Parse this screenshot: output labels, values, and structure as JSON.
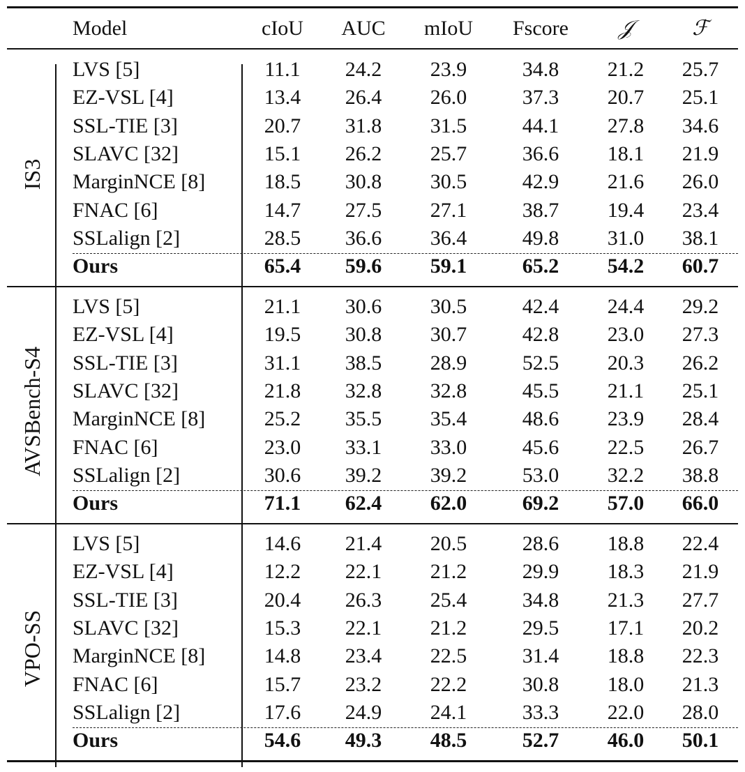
{
  "table": {
    "columns": [
      "Model",
      "cIoU",
      "AUC",
      "mIoU",
      "Fscore",
      "𝒥",
      "ℱ"
    ],
    "groups": [
      {
        "name": "IS3",
        "rows": [
          {
            "model": "LVS [5]",
            "values": [
              "11.1",
              "24.2",
              "23.9",
              "34.8",
              "21.2",
              "25.7"
            ]
          },
          {
            "model": "EZ-VSL [4]",
            "values": [
              "13.4",
              "26.4",
              "26.0",
              "37.3",
              "20.7",
              "25.1"
            ]
          },
          {
            "model": "SSL-TIE [3]",
            "values": [
              "20.7",
              "31.8",
              "31.5",
              "44.1",
              "27.8",
              "34.6"
            ]
          },
          {
            "model": "SLAVC [32]",
            "values": [
              "15.1",
              "26.2",
              "25.7",
              "36.6",
              "18.1",
              "21.9"
            ]
          },
          {
            "model": "MarginNCE [8]",
            "values": [
              "18.5",
              "30.8",
              "30.5",
              "42.9",
              "21.6",
              "26.0"
            ]
          },
          {
            "model": "FNAC [6]",
            "values": [
              "14.7",
              "27.5",
              "27.1",
              "38.7",
              "19.4",
              "23.4"
            ]
          },
          {
            "model": "SSLalign [2]",
            "values": [
              "28.5",
              "36.6",
              "36.4",
              "49.8",
              "31.0",
              "38.1"
            ]
          }
        ],
        "ours": {
          "model": "Ours",
          "values": [
            "65.4",
            "59.6",
            "59.1",
            "65.2",
            "54.2",
            "60.7"
          ]
        }
      },
      {
        "name": "AVSBench-S4",
        "rows": [
          {
            "model": "LVS [5]",
            "values": [
              "21.1",
              "30.6",
              "30.5",
              "42.4",
              "24.4",
              "29.2"
            ]
          },
          {
            "model": "EZ-VSL [4]",
            "values": [
              "19.5",
              "30.8",
              "30.7",
              "42.8",
              "23.0",
              "27.3"
            ]
          },
          {
            "model": "SSL-TIE [3]",
            "values": [
              "31.1",
              "38.5",
              "28.9",
              "52.5",
              "20.3",
              "26.2"
            ]
          },
          {
            "model": "SLAVC [32]",
            "values": [
              "21.8",
              "32.8",
              "32.8",
              "45.5",
              "21.1",
              "25.1"
            ]
          },
          {
            "model": "MarginNCE [8]",
            "values": [
              "25.2",
              "35.5",
              "35.4",
              "48.6",
              "23.9",
              "28.4"
            ]
          },
          {
            "model": "FNAC [6]",
            "values": [
              "23.0",
              "33.1",
              "33.0",
              "45.6",
              "22.5",
              "26.7"
            ]
          },
          {
            "model": "SSLalign [2]",
            "values": [
              "30.6",
              "39.2",
              "39.2",
              "53.0",
              "32.2",
              "38.8"
            ]
          }
        ],
        "ours": {
          "model": "Ours",
          "values": [
            "71.1",
            "62.4",
            "62.0",
            "69.2",
            "57.0",
            "66.0"
          ]
        }
      },
      {
        "name": "VPO-SS",
        "rows": [
          {
            "model": "LVS [5]",
            "values": [
              "14.6",
              "21.4",
              "20.5",
              "28.6",
              "18.8",
              "22.4"
            ]
          },
          {
            "model": "EZ-VSL [4]",
            "values": [
              "12.2",
              "22.1",
              "21.2",
              "29.9",
              "18.3",
              "21.9"
            ]
          },
          {
            "model": "SSL-TIE [3]",
            "values": [
              "20.4",
              "26.3",
              "25.4",
              "34.8",
              "21.3",
              "27.7"
            ]
          },
          {
            "model": "SLAVC [32]",
            "values": [
              "15.3",
              "22.1",
              "21.2",
              "29.5",
              "17.1",
              "20.2"
            ]
          },
          {
            "model": "MarginNCE [8]",
            "values": [
              "14.8",
              "23.4",
              "22.5",
              "31.4",
              "18.8",
              "22.3"
            ]
          },
          {
            "model": "FNAC [6]",
            "values": [
              "15.7",
              "23.2",
              "22.2",
              "30.8",
              "18.0",
              "21.3"
            ]
          },
          {
            "model": "SSLalign [2]",
            "values": [
              "17.6",
              "24.9",
              "24.1",
              "33.3",
              "22.0",
              "28.0"
            ]
          }
        ],
        "ours": {
          "model": "Ours",
          "values": [
            "54.6",
            "49.3",
            "48.5",
            "52.7",
            "46.0",
            "50.1"
          ]
        }
      }
    ]
  }
}
